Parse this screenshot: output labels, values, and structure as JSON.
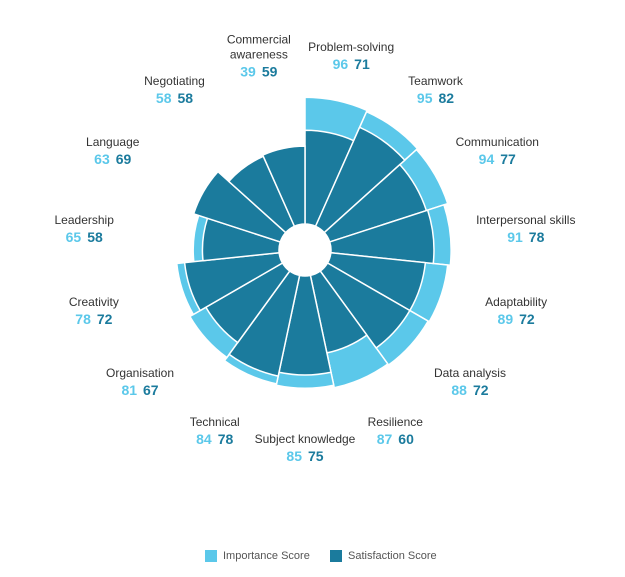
{
  "chart_data": {
    "type": "polar-bar",
    "categories": [
      "Problem-solving",
      "Teamwork",
      "Communication",
      "Interpersonal skills",
      "Adaptability",
      "Data analysis",
      "Resilience",
      "Subject knowledge",
      "Technical",
      "Organisation",
      "Creativity",
      "Leadership",
      "Language",
      "Negotiating",
      "Commercial awareness"
    ],
    "series": [
      {
        "name": "Importance Score",
        "color": "#5bc8ea",
        "values": [
          96,
          95,
          94,
          91,
          89,
          88,
          87,
          85,
          84,
          81,
          78,
          65,
          63,
          58,
          39
        ]
      },
      {
        "name": "Satisfaction Score",
        "color": "#1b7b9d",
        "values": [
          71,
          82,
          77,
          78,
          72,
          72,
          60,
          75,
          78,
          67,
          72,
          58,
          69,
          58,
          59
        ]
      }
    ],
    "rlim": [
      0,
      100
    ]
  }
}
